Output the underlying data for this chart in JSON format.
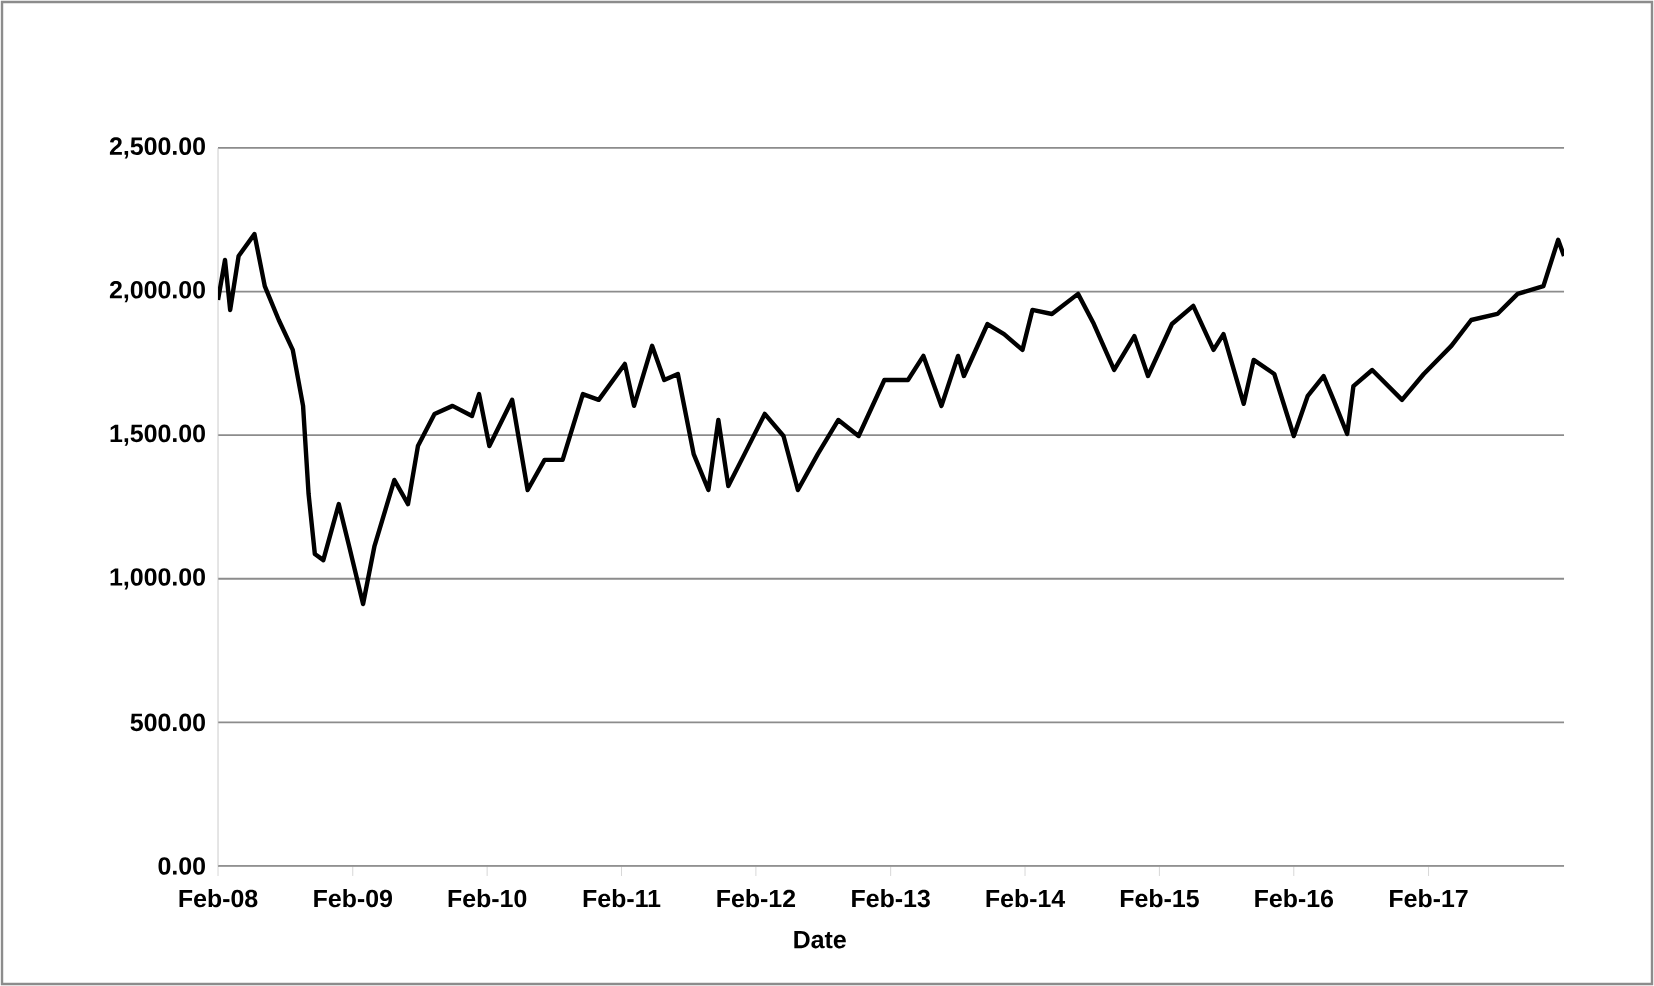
{
  "chart_data": {
    "type": "line",
    "xlabel": "Date",
    "x": [
      "2008-02-01",
      "2008-02-20",
      "2008-03-05",
      "2008-03-28",
      "2008-05-10",
      "2008-06-07",
      "2008-07-15",
      "2008-08-22",
      "2008-09-19",
      "2008-10-04",
      "2008-10-21",
      "2008-11-13",
      "2008-12-25",
      "2009-01-22",
      "2009-03-01",
      "2009-04-01",
      "2009-05-25",
      "2009-07-01",
      "2009-07-28",
      "2009-09-11",
      "2009-10-30",
      "2009-12-22",
      "2010-01-10",
      "2010-02-07",
      "2010-04-10",
      "2010-05-22",
      "2010-07-07",
      "2010-08-25",
      "2010-10-19",
      "2010-12-01",
      "2011-02-10",
      "2011-03-07",
      "2011-04-25",
      "2011-05-28",
      "2011-07-04",
      "2011-08-16",
      "2011-09-25",
      "2011-10-22",
      "2011-11-18",
      "2012-01-01",
      "2012-02-25",
      "2012-04-16",
      "2012-05-25",
      "2012-07-18",
      "2012-09-12",
      "2012-11-06",
      "2013-01-15",
      "2013-03-20",
      "2013-05-01",
      "2013-06-19",
      "2013-08-03",
      "2013-08-19",
      "2013-10-22",
      "2013-12-06",
      "2014-01-25",
      "2014-02-21",
      "2014-04-15",
      "2014-06-25",
      "2014-08-07",
      "2014-10-01",
      "2014-11-25",
      "2015-01-01",
      "2015-03-07",
      "2015-05-04",
      "2015-06-28",
      "2015-07-25",
      "2015-09-18",
      "2015-10-15",
      "2015-12-10",
      "2016-02-01",
      "2016-03-10",
      "2016-04-22",
      "2016-05-19",
      "2016-06-25",
      "2016-07-12",
      "2016-09-01",
      "2016-11-21",
      "2017-01-19",
      "2017-04-04",
      "2017-05-28",
      "2017-08-07",
      "2017-10-01",
      "2017-12-10",
      "2018-01-19",
      "2018-02-04"
    ],
    "series": [
      {
        "color": "#000000",
        "values": [
          1971,
          2110,
          1936,
          2124,
          2200,
          2019,
          1901,
          1797,
          1602,
          1295,
          1086,
          1065,
          1260,
          1114,
          912,
          1114,
          1344,
          1260,
          1462,
          1574,
          1602,
          1567,
          1643,
          1462,
          1623,
          1309,
          1414,
          1414,
          1643,
          1623,
          1748,
          1602,
          1811,
          1692,
          1713,
          1434,
          1309,
          1553,
          1323,
          1434,
          1574,
          1497,
          1309,
          1434,
          1553,
          1497,
          1692,
          1692,
          1776,
          1602,
          1776,
          1706,
          1887,
          1852,
          1797,
          1936,
          1922,
          1992,
          1887,
          1727,
          1845,
          1706,
          1887,
          1950,
          1797,
          1852,
          1609,
          1762,
          1713,
          1497,
          1637,
          1706,
          1623,
          1504,
          1671,
          1727,
          1623,
          1713,
          1811,
          1901,
          1922,
          1992,
          2019,
          2180,
          2124
        ]
      }
    ],
    "xlim": [
      "2008-02-01",
      "2018-02-04"
    ],
    "xticks": [
      {
        "value": "2008-02-01",
        "label": "Feb-08"
      },
      {
        "value": "2009-02-01",
        "label": "Feb-09"
      },
      {
        "value": "2010-02-01",
        "label": "Feb-10"
      },
      {
        "value": "2011-02-01",
        "label": "Feb-11"
      },
      {
        "value": "2012-02-01",
        "label": "Feb-12"
      },
      {
        "value": "2013-02-01",
        "label": "Feb-13"
      },
      {
        "value": "2014-02-01",
        "label": "Feb-14"
      },
      {
        "value": "2015-02-01",
        "label": "Feb-15"
      },
      {
        "value": "2016-02-01",
        "label": "Feb-16"
      },
      {
        "value": "2017-02-01",
        "label": "Feb-17"
      }
    ],
    "ylim": [
      0,
      2500
    ],
    "yticks": [
      {
        "value": 0,
        "label": "0.00"
      },
      {
        "value": 500,
        "label": "500.00"
      },
      {
        "value": 1000,
        "label": "1,000.00"
      },
      {
        "value": 1500,
        "label": "1,500.00"
      },
      {
        "value": 2000,
        "label": "2,000.00"
      },
      {
        "value": 2500,
        "label": "2,500.00"
      }
    ],
    "grid": "y",
    "legend": false,
    "marker": "none",
    "line_style": "solid"
  }
}
